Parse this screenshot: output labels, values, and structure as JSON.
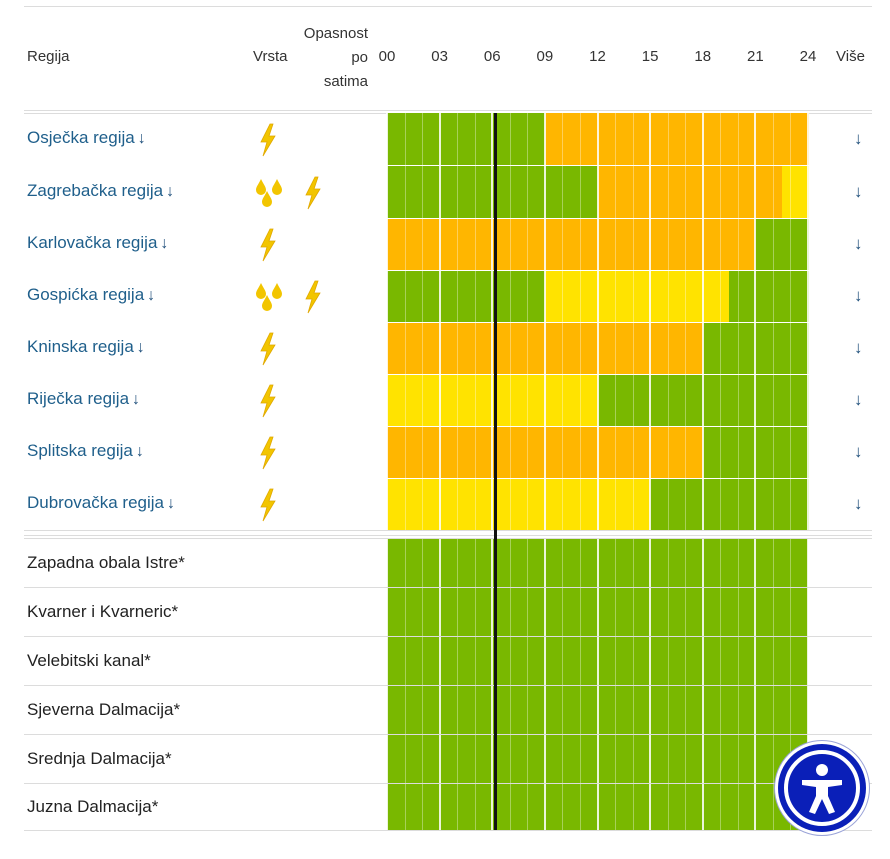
{
  "header": {
    "region_label": "Regija",
    "type_label": "Vrsta",
    "hazard_label": [
      "Opasnost",
      "po",
      "satima"
    ],
    "hours": [
      "00",
      "03",
      "06",
      "09",
      "12",
      "15",
      "18",
      "21",
      "24"
    ],
    "more_label": "Više"
  },
  "colors": {
    "green": "#79b800",
    "yellow": "#ffe300",
    "orange": "#ffb600",
    "region_link": "#1f5f8b",
    "lightning_icon": "#f2c500",
    "rain_icon": "#f2c500",
    "accessibility_bg": "#0a1fb8"
  },
  "regions": [
    {
      "name": "Osječka regija",
      "arrow": "↓",
      "more": "↓",
      "icons": [
        "lightning-icon"
      ],
      "hazard_by_hour": [
        "green",
        "green",
        "green",
        "green",
        "green",
        "green",
        "orange",
        "orange",
        "orange",
        "orange",
        "orange",
        "orange",
        "orange",
        "orange",
        "orange",
        "orange"
      ]
    },
    {
      "name": "Zagrebačka regija",
      "arrow": "↓",
      "more": "↓",
      "icons": [
        "rain-icon",
        "lightning-icon"
      ],
      "hazard_by_hour": [
        "green",
        "green",
        "green",
        "green",
        "green",
        "green",
        "green",
        "green",
        "orange",
        "orange",
        "orange",
        "orange",
        "orange",
        "orange",
        "orange",
        "yellow"
      ]
    },
    {
      "name": "Karlovačka regija",
      "arrow": "↓",
      "more": "↓",
      "icons": [
        "lightning-icon"
      ],
      "hazard_by_hour": [
        "orange",
        "orange",
        "orange",
        "orange",
        "orange",
        "orange",
        "orange",
        "orange",
        "orange",
        "orange",
        "orange",
        "orange",
        "orange",
        "orange",
        "green",
        "green"
      ]
    },
    {
      "name": "Gospićka regija",
      "arrow": "↓",
      "more": "↓",
      "icons": [
        "rain-icon",
        "lightning-icon"
      ],
      "hazard_by_hour": [
        "green",
        "green",
        "green",
        "green",
        "green",
        "green",
        "yellow",
        "yellow",
        "yellow",
        "yellow",
        "yellow",
        "yellow",
        "yellow",
        "green",
        "green",
        "green"
      ]
    },
    {
      "name": "Kninska regija",
      "arrow": "↓",
      "more": "↓",
      "icons": [
        "lightning-icon"
      ],
      "hazard_by_hour": [
        "orange",
        "orange",
        "orange",
        "orange",
        "orange",
        "orange",
        "orange",
        "orange",
        "orange",
        "orange",
        "orange",
        "orange",
        "green",
        "green",
        "green",
        "green"
      ]
    },
    {
      "name": "Riječka regija",
      "arrow": "↓",
      "more": "↓",
      "icons": [
        "lightning-icon"
      ],
      "hazard_by_hour": [
        "yellow",
        "yellow",
        "yellow",
        "yellow",
        "yellow",
        "yellow",
        "yellow",
        "yellow",
        "green",
        "green",
        "green",
        "green",
        "green",
        "green",
        "green",
        "green"
      ]
    },
    {
      "name": "Splitska regija",
      "arrow": "↓",
      "more": "↓",
      "icons": [
        "lightning-icon"
      ],
      "hazard_by_hour": [
        "orange",
        "orange",
        "orange",
        "orange",
        "orange",
        "orange",
        "orange",
        "orange",
        "orange",
        "orange",
        "orange",
        "orange",
        "green",
        "green",
        "green",
        "green"
      ]
    },
    {
      "name": "Dubrovačka regija",
      "arrow": "↓",
      "more": "↓",
      "icons": [
        "lightning-icon"
      ],
      "hazard_by_hour": [
        "yellow",
        "yellow",
        "yellow",
        "yellow",
        "yellow",
        "yellow",
        "yellow",
        "yellow",
        "yellow",
        "yellow",
        "green",
        "green",
        "green",
        "green",
        "green",
        "green"
      ]
    }
  ],
  "coastal": [
    {
      "name": "Zapadna obala Istre*",
      "hazard": "green"
    },
    {
      "name": "Kvarner i Kvarneric*",
      "hazard": "green"
    },
    {
      "name": "Velebitski kanal*",
      "hazard": "green"
    },
    {
      "name": "Sjeverna Dalmacija*",
      "hazard": "green"
    },
    {
      "name": "Srednja Dalmacija*",
      "hazard": "green"
    },
    {
      "name": "Juzna Dalmacija*",
      "hazard": "green"
    }
  ],
  "current_time_marker_hour": 6,
  "accessibility_button": {
    "icon": "accessibility-icon"
  }
}
